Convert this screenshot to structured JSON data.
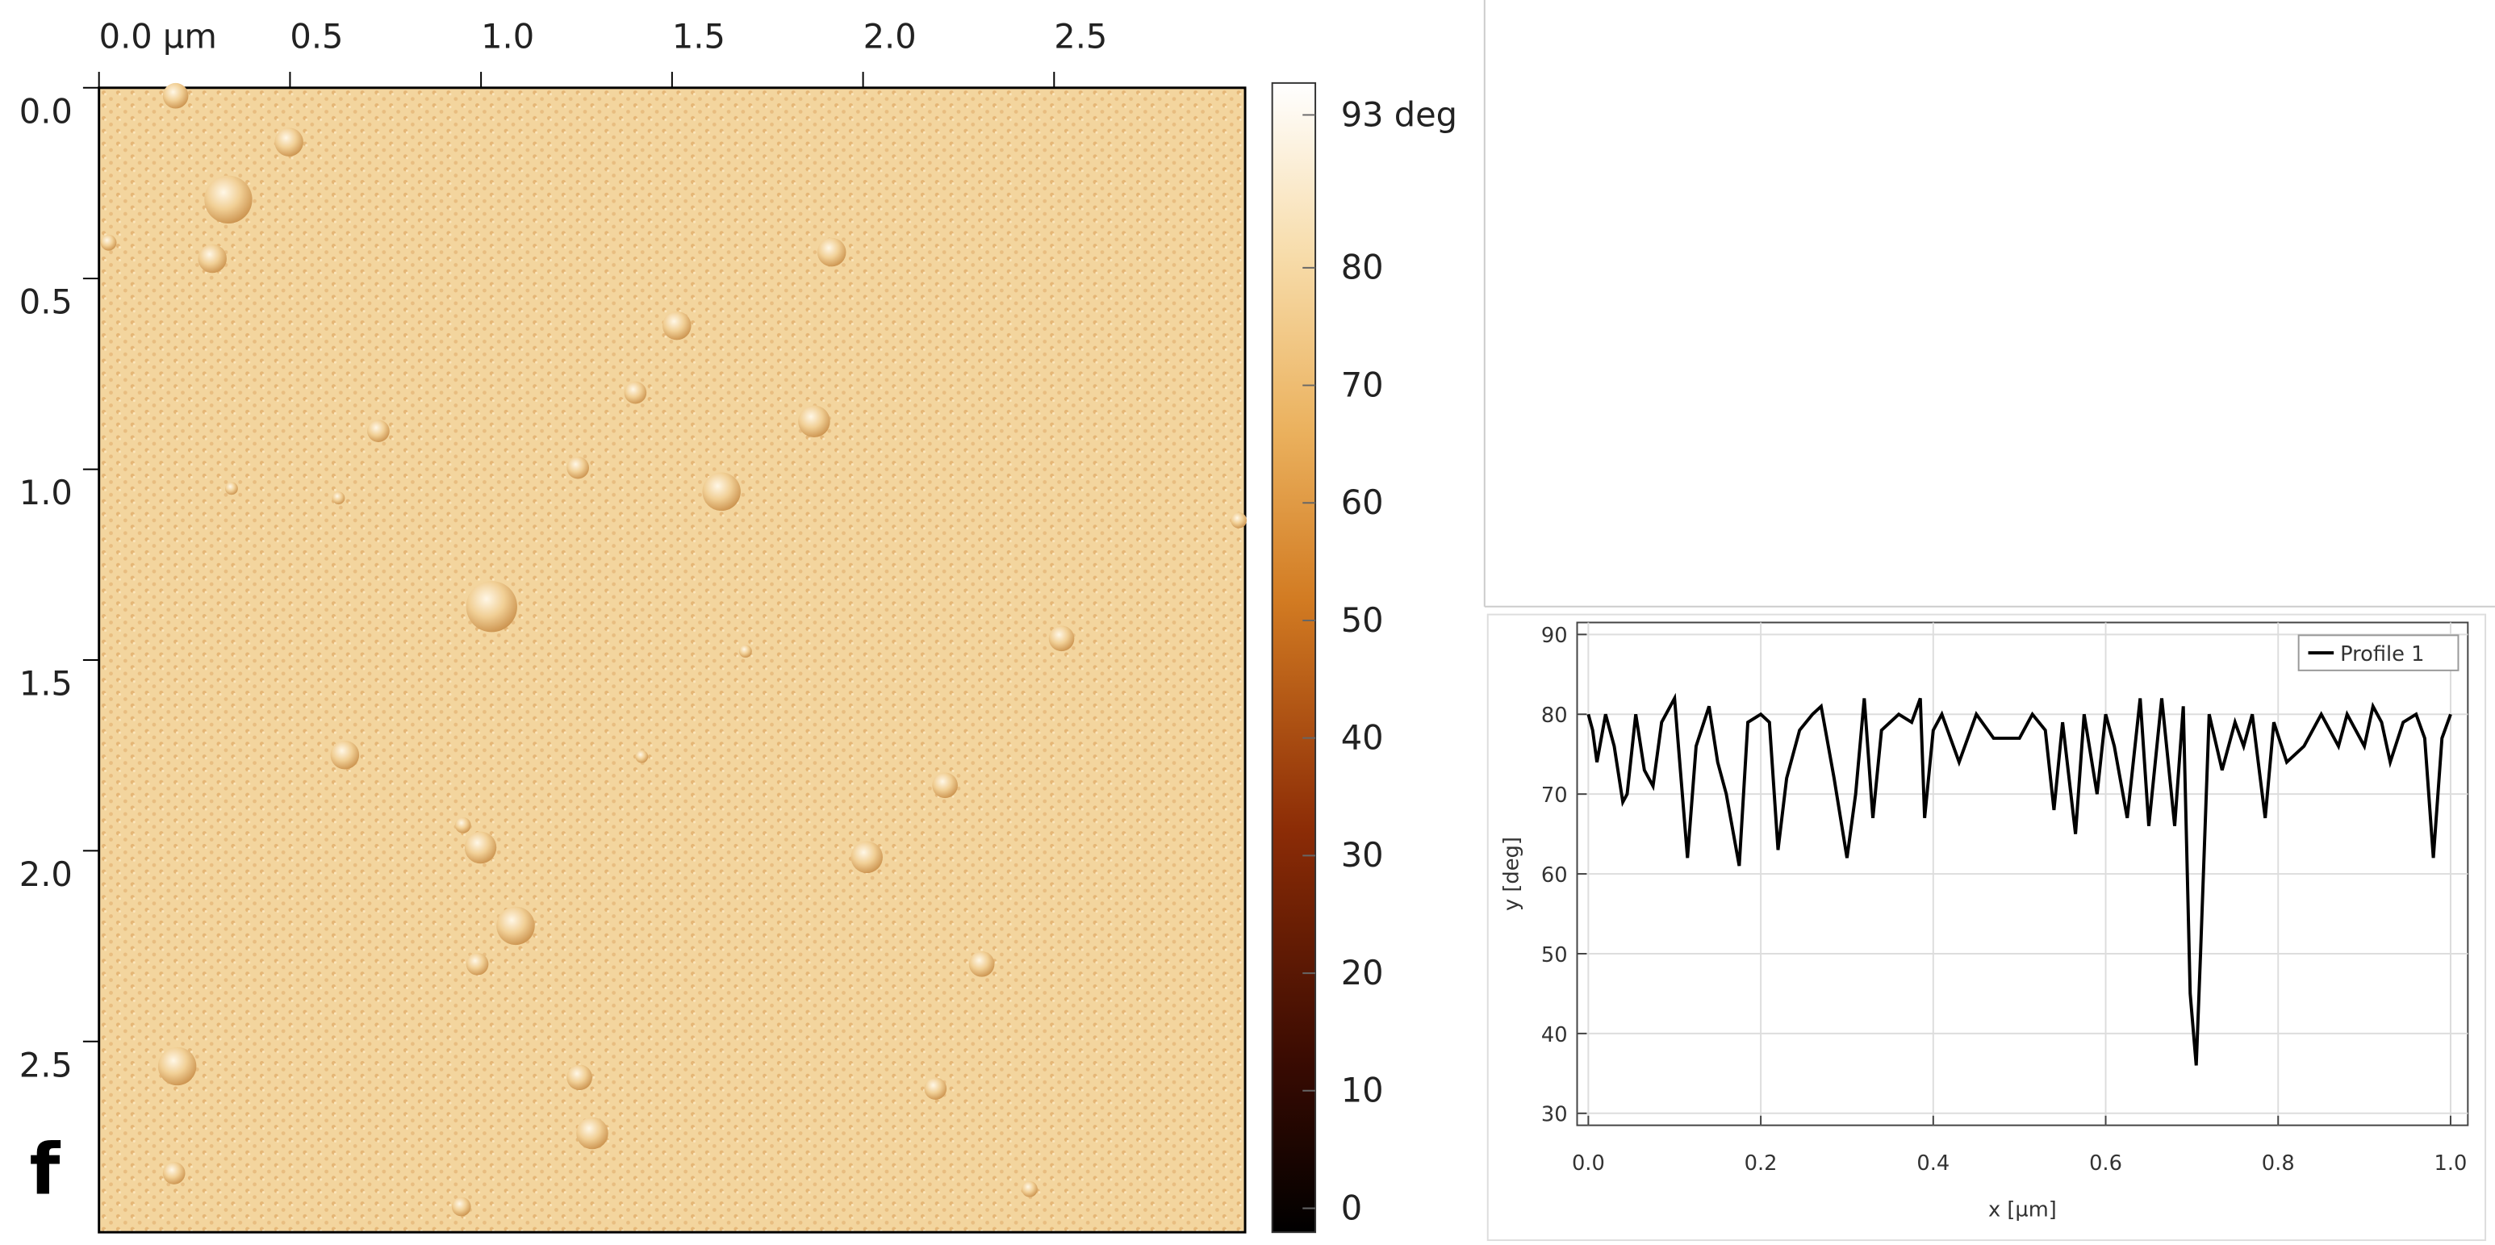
{
  "chart_data": [
    {
      "type": "heatmap",
      "label": "f",
      "xlim": [
        0,
        3
      ],
      "ylim": [
        0,
        3
      ],
      "xticks": [
        {
          "value": 0,
          "label": "0.0 µm"
        },
        0.5,
        {
          "value": 1,
          "label": "1.0"
        },
        1.5,
        {
          "value": 2,
          "label": "2.0"
        },
        2.5
      ],
      "yticks": [
        {
          "value": 0,
          "label": "0.0"
        },
        0.5,
        {
          "value": 1,
          "label": "1.0"
        },
        1.5,
        {
          "value": 2,
          "label": "2.0"
        },
        2.5
      ],
      "zlim": [
        0,
        93
      ],
      "zticks": [
        {
          "value": 93,
          "label": "93 deg"
        },
        80,
        70,
        60,
        50,
        40,
        30,
        20,
        10,
        0
      ]
    },
    {
      "type": "line",
      "xlabel": "x [µm]",
      "ylabel": "y [deg]",
      "grid": true,
      "legend": "upper right",
      "xlim": [
        -0.013,
        1.02
      ],
      "ylim": [
        28.5,
        91.5
      ],
      "xticks": [
        {
          "value": 0,
          "label": "0.0"
        },
        0.2,
        0.4,
        0.6,
        0.8,
        {
          "value": 1,
          "label": "1.0"
        }
      ],
      "yticks": [
        30,
        40,
        50,
        60,
        70,
        80,
        90
      ],
      "x": [
        0,
        0.005,
        0.01,
        0.02,
        0.03,
        0.04,
        0.045,
        0.055,
        0.065,
        0.075,
        0.085,
        0.1,
        0.115,
        0.125,
        0.14,
        0.15,
        0.16,
        0.175,
        0.185,
        0.2,
        0.21,
        0.22,
        0.23,
        0.245,
        0.26,
        0.27,
        0.285,
        0.3,
        0.31,
        0.32,
        0.33,
        0.34,
        0.36,
        0.375,
        0.385,
        0.39,
        0.4,
        0.41,
        0.43,
        0.45,
        0.47,
        0.5,
        0.515,
        0.53,
        0.54,
        0.55,
        0.565,
        0.575,
        0.59,
        0.6,
        0.61,
        0.625,
        0.64,
        0.65,
        0.665,
        0.68,
        0.69,
        0.698,
        0.705,
        0.71,
        0.72,
        0.735,
        0.75,
        0.76,
        0.77,
        0.785,
        0.795,
        0.81,
        0.83,
        0.85,
        0.87,
        0.88,
        0.9,
        0.91,
        0.92,
        0.93,
        0.945,
        0.96,
        0.97,
        0.98,
        0.99,
        1.0
      ],
      "series": [
        {
          "name": "Profile 1",
          "color": "#000000",
          "values": [
            80,
            78,
            74,
            80,
            76,
            69,
            70,
            80,
            73,
            71,
            79,
            82,
            62,
            76,
            81,
            74,
            70,
            61,
            79,
            80,
            79,
            63,
            72,
            78,
            80,
            81,
            72,
            62,
            70,
            82,
            67,
            78,
            80,
            79,
            82,
            67,
            78,
            80,
            74,
            80,
            77,
            77,
            80,
            78,
            68,
            79,
            65,
            80,
            70,
            80,
            76,
            67,
            82,
            66,
            82,
            66,
            81,
            45,
            36,
            50,
            80,
            73,
            79,
            76,
            80,
            67,
            79,
            74,
            76,
            80,
            76,
            80,
            76,
            81,
            79,
            74,
            79,
            80,
            77,
            62,
            77,
            80
          ]
        }
      ]
    }
  ]
}
